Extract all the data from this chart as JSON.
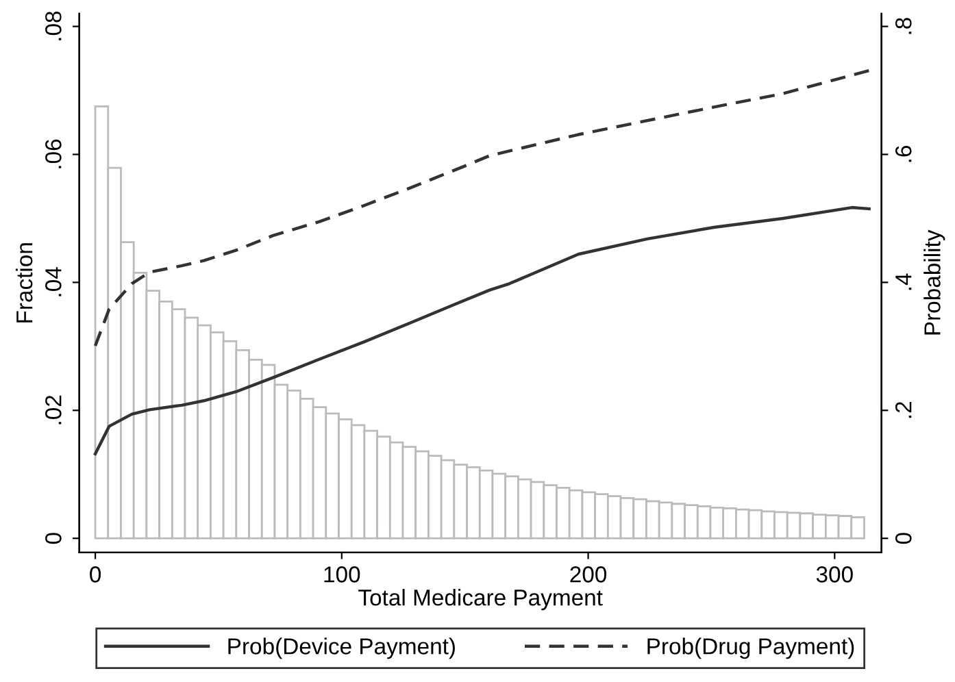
{
  "chart_data": {
    "type": "histogram",
    "xlabel": "Total Medicare Payment",
    "ylabel": "Fraction",
    "y2label": "Probability",
    "xlim": [
      -6.5,
      319
    ],
    "xticks": [
      0,
      100,
      200,
      300
    ],
    "ylim": [
      -0.0022,
      0.082
    ],
    "yticks": [
      0,
      {
        "value": 0.02,
        "label": ".02"
      },
      {
        "value": 0.04,
        "label": ".04"
      },
      {
        "value": 0.06,
        "label": ".06"
      },
      {
        "value": 0.08,
        "label": ".08"
      }
    ],
    "y2lim": [
      -0.022,
      0.82
    ],
    "y2ticks": [
      0,
      {
        "value": 0.2,
        "label": ".2"
      },
      {
        "value": 0.4,
        "label": ".4"
      },
      {
        "value": 0.6,
        "label": ".6"
      },
      {
        "value": 0.8,
        "label": ".8"
      }
    ],
    "grid": false,
    "legend": "bottom",
    "series": [
      {
        "color": "#bbbbbb",
        "bins": [
          0,
          5.2,
          10.4,
          15.6,
          20.8,
          26,
          31.2,
          36.4,
          41.6,
          46.8,
          52,
          57.2,
          62.4,
          67.6,
          72.8,
          78,
          83.2,
          88.4,
          93.6,
          98.8,
          104,
          109.2,
          114.4,
          119.6,
          124.8,
          130,
          135.2,
          140.4,
          145.6,
          150.8,
          156,
          161.2,
          166.4,
          171.6,
          176.8,
          182,
          187.2,
          192.4,
          197.6,
          202.8,
          208,
          213.2,
          218.4,
          223.6,
          228.8,
          234,
          239.2,
          244.4,
          249.6,
          254.8,
          260,
          265.2,
          270.4,
          275.6,
          280.8,
          286,
          291.2,
          296.4,
          301.6,
          306.8,
          312
        ],
        "values": [
          0.0675,
          0.0579,
          0.0463,
          0.0415,
          0.0387,
          0.037,
          0.0358,
          0.0345,
          0.0333,
          0.0322,
          0.0308,
          0.0294,
          0.0279,
          0.0271,
          0.024,
          0.0231,
          0.0218,
          0.0205,
          0.0195,
          0.0186,
          0.0177,
          0.0168,
          0.0159,
          0.015,
          0.0143,
          0.0136,
          0.0129,
          0.0122,
          0.0115,
          0.0111,
          0.0106,
          0.0101,
          0.0097,
          0.0092,
          0.0088,
          0.0083,
          0.0079,
          0.0075,
          0.0072,
          0.0069,
          0.0066,
          0.0063,
          0.0061,
          0.0058,
          0.0056,
          0.0054,
          0.0052,
          0.005,
          0.0048,
          0.0047,
          0.0045,
          0.0044,
          0.0042,
          0.0041,
          0.004,
          0.0039,
          0.0037,
          0.0036,
          0.0035,
          0.0033
        ]
      },
      {
        "type": "line",
        "name": "Prob(Device Payment)",
        "axis": "y2",
        "color": "#333333",
        "line_style": "solid",
        "x": [
          0,
          5.6,
          14.8,
          22,
          35,
          44,
          57,
          72,
          91,
          109,
          128,
          146,
          160,
          168,
          196,
          224,
          251,
          279,
          307,
          314
        ],
        "values": [
          0.132,
          0.175,
          0.194,
          0.201,
          0.208,
          0.215,
          0.229,
          0.251,
          0.28,
          0.307,
          0.337,
          0.366,
          0.388,
          0.398,
          0.444,
          0.468,
          0.486,
          0.5,
          0.517,
          0.515
        ]
      },
      {
        "type": "line",
        "name": "Prob(Drug Payment)",
        "axis": "y2",
        "color": "#333333",
        "line_style": "dashed",
        "x": [
          0,
          5.6,
          14.8,
          22,
          35,
          44,
          57,
          72,
          91,
          109,
          128,
          150,
          160,
          196,
          251,
          279,
          314
        ],
        "values": [
          0.301,
          0.358,
          0.398,
          0.416,
          0.426,
          0.434,
          0.45,
          0.473,
          0.495,
          0.52,
          0.548,
          0.582,
          0.598,
          0.631,
          0.674,
          0.695,
          0.731
        ]
      }
    ]
  }
}
